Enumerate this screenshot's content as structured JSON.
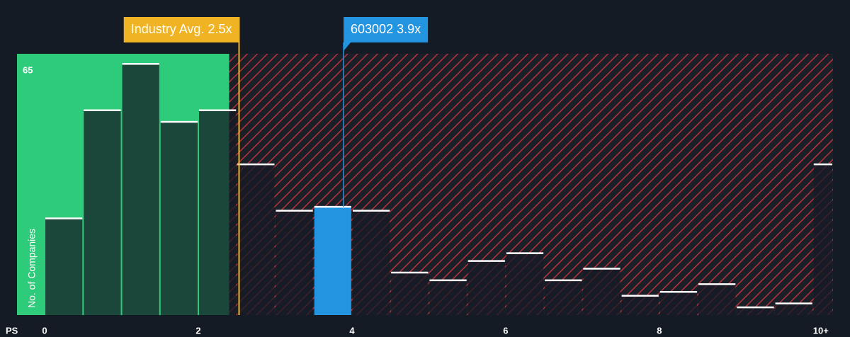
{
  "chart_data": {
    "type": "histogram",
    "xlabel": "PS",
    "ylabel": "No. of Companies",
    "bins": [
      0,
      0.5,
      1,
      1.5,
      2,
      2.5,
      3,
      3.5,
      4,
      4.5,
      5,
      5.5,
      6,
      6.5,
      7,
      7.5,
      8,
      8.5,
      9,
      9.5,
      10,
      10.5
    ],
    "values": [
      25,
      53,
      65,
      50,
      53,
      39,
      27,
      28,
      27,
      11,
      9,
      14,
      16,
      9,
      12,
      5,
      6,
      8,
      2,
      3,
      39
    ],
    "color": "#161b25",
    "highlight_index": 7,
    "highlight_color": "#2394e0",
    "xlim": [
      -0.36,
      10.26
    ],
    "xticks": [
      0,
      2,
      4,
      6,
      8,
      {
        "value": 10,
        "label": "10+"
      }
    ],
    "ylim": [
      0,
      67.6
    ],
    "yticks": [
      65
    ],
    "annotations": [
      {
        "text": "Industry Avg. 2.5x",
        "x": 2.53,
        "color": "#f0b323"
      },
      {
        "text": "603002 3.9x",
        "x": 3.89,
        "color": "#2394e0"
      }
    ]
  }
}
